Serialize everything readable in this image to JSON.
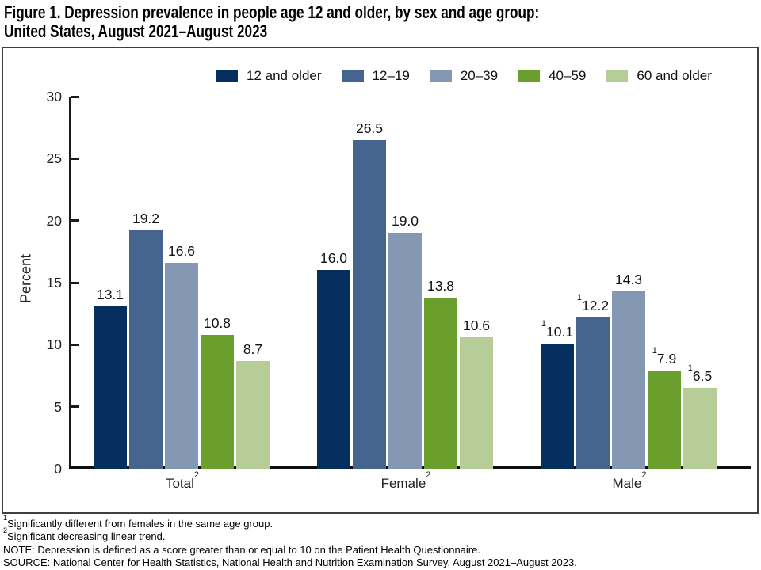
{
  "title": {
    "line1": "Figure 1. Depression prevalence in people age 12 and older, by sex and age group:",
    "line2": "United States, August 2021–August 2023"
  },
  "chart_data": {
    "type": "bar",
    "title": "Depression prevalence in people age 12 and older, by sex and age group: United States, August 2021–August 2023",
    "ylabel": "Percent",
    "ylim": [
      0,
      30
    ],
    "yticks": [
      0,
      5,
      10,
      15,
      20,
      25,
      30
    ],
    "grid": false,
    "legend_position": "top-center",
    "categories": [
      "Total",
      "Female",
      "Male"
    ],
    "category_superscript": "2",
    "series": [
      {
        "name": "12 and older",
        "color": "#032e5e",
        "values": [
          13.1,
          16.0,
          10.1
        ],
        "labels": [
          "13.1",
          "16.0",
          "10.1"
        ],
        "label_sups": [
          "",
          "",
          "1"
        ]
      },
      {
        "name": "12–19",
        "color": "#45658e",
        "values": [
          19.2,
          26.5,
          12.2
        ],
        "labels": [
          "19.2",
          "26.5",
          "12.2"
        ],
        "label_sups": [
          "",
          "",
          "1"
        ]
      },
      {
        "name": "20–39",
        "color": "#8498b4",
        "values": [
          16.6,
          19.0,
          14.3
        ],
        "labels": [
          "16.6",
          "19.0",
          "14.3"
        ],
        "label_sups": [
          "",
          "",
          ""
        ]
      },
      {
        "name": "40–59",
        "color": "#6a9e2d",
        "values": [
          10.8,
          13.8,
          7.9
        ],
        "labels": [
          "10.8",
          "13.8",
          "7.9"
        ],
        "label_sups": [
          "",
          "",
          "1"
        ]
      },
      {
        "name": "60 and older",
        "color": "#b6cd97",
        "values": [
          8.7,
          10.6,
          6.5
        ],
        "labels": [
          "8.7",
          "10.6",
          "6.5"
        ],
        "label_sups": [
          "",
          "",
          "1"
        ]
      }
    ]
  },
  "footnotes": [
    {
      "sup": "1",
      "text": "Significantly different from females in the same age group."
    },
    {
      "sup": "2",
      "text": "Significant decreasing linear trend."
    },
    {
      "sup": "",
      "text": "NOTE: Depression is defined as a score greater than or equal to 10 on the Patient Health Questionnaire."
    },
    {
      "sup": "",
      "text": "SOURCE: National Center for Health Statistics, National Health and Nutrition Examination Survey, August 2021–August 2023."
    }
  ]
}
